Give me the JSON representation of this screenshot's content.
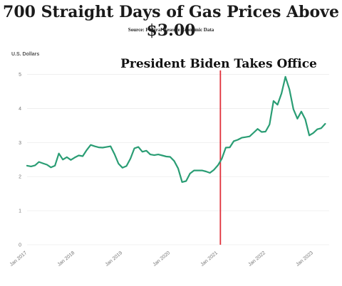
{
  "chart_data": {
    "type": "line",
    "title": "700 Straight Days of Gas Prices Above $3.00",
    "subtitle": "Source: Federal Reserve Economic Data",
    "ylabel": "U.S. Dollars",
    "xlabel": "",
    "ylim": [
      0,
      5.2
    ],
    "y_ticks": [
      0,
      1,
      2,
      3,
      4,
      5
    ],
    "x_ticks": [
      "Jan 2017",
      "Jan 2018",
      "Jan 2019",
      "Jan 2020",
      "Jan 2021",
      "Jan 2022",
      "Jan 2023"
    ],
    "xlim": [
      "2017-01",
      "2023-05"
    ],
    "grid": true,
    "annotation": {
      "text": "President Biden Takes Office",
      "x": "2021-01-20"
    },
    "line_color": "#2a9d74",
    "annotation_color": "#e0303a",
    "series": [
      {
        "name": "",
        "x": [
          "2017-01",
          "2017-02",
          "2017-03",
          "2017-04",
          "2017-05",
          "2017-06",
          "2017-07",
          "2017-08",
          "2017-09",
          "2017-10",
          "2017-11",
          "2017-12",
          "2018-01",
          "2018-02",
          "2018-03",
          "2018-04",
          "2018-05",
          "2018-06",
          "2018-07",
          "2018-08",
          "2018-09",
          "2018-10",
          "2018-11",
          "2018-12",
          "2019-01",
          "2019-02",
          "2019-03",
          "2019-04",
          "2019-05",
          "2019-06",
          "2019-07",
          "2019-08",
          "2019-09",
          "2019-10",
          "2019-11",
          "2019-12",
          "2020-01",
          "2020-02",
          "2020-03",
          "2020-04",
          "2020-05",
          "2020-06",
          "2020-07",
          "2020-08",
          "2020-09",
          "2020-10",
          "2020-11",
          "2020-12",
          "2021-01",
          "2021-02",
          "2021-03",
          "2021-04",
          "2021-05",
          "2021-06",
          "2021-07",
          "2021-08",
          "2021-09",
          "2021-10",
          "2021-11",
          "2021-12",
          "2022-01",
          "2022-02",
          "2022-03",
          "2022-04",
          "2022-05",
          "2022-06",
          "2022-07",
          "2022-08",
          "2022-09",
          "2022-10",
          "2022-11",
          "2022-12",
          "2023-01",
          "2023-02",
          "2023-03",
          "2023-04"
        ],
        "values": [
          2.32,
          2.3,
          2.33,
          2.43,
          2.39,
          2.35,
          2.27,
          2.32,
          2.68,
          2.5,
          2.57,
          2.49,
          2.56,
          2.62,
          2.6,
          2.78,
          2.93,
          2.89,
          2.86,
          2.85,
          2.87,
          2.89,
          2.66,
          2.38,
          2.26,
          2.31,
          2.53,
          2.83,
          2.87,
          2.73,
          2.76,
          2.65,
          2.63,
          2.65,
          2.62,
          2.59,
          2.58,
          2.46,
          2.24,
          1.84,
          1.87,
          2.09,
          2.18,
          2.18,
          2.18,
          2.15,
          2.11,
          2.2,
          2.33,
          2.53,
          2.85,
          2.86,
          3.04,
          3.08,
          3.14,
          3.16,
          3.18,
          3.29,
          3.4,
          3.31,
          3.32,
          3.53,
          4.22,
          4.11,
          4.44,
          4.93,
          4.56,
          3.98,
          3.7,
          3.91,
          3.68,
          3.21,
          3.28,
          3.39,
          3.42,
          3.55
        ]
      }
    ]
  }
}
